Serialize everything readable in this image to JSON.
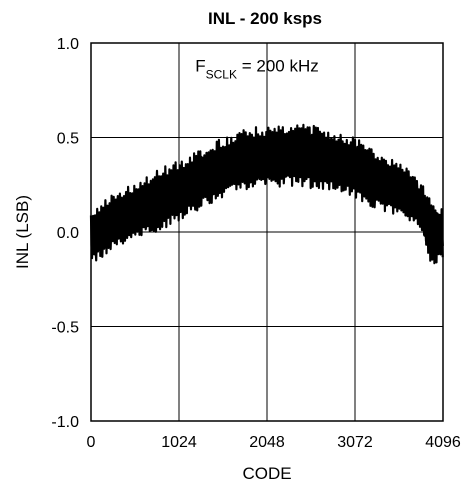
{
  "chart_data": {
    "type": "line",
    "title": "INL - 200 ksps",
    "xlabel": "CODE",
    "ylabel": "INL (LSB)",
    "xlim": [
      0,
      4096
    ],
    "ylim": [
      -1.0,
      1.0
    ],
    "x_ticks": [
      0,
      1024,
      2048,
      3072,
      4096
    ],
    "x_tick_labels": [
      "0",
      "1024",
      "2048",
      "3072",
      "4096"
    ],
    "y_ticks": [
      1.0,
      0.5,
      0.0,
      -0.5,
      -1.0
    ],
    "y_tick_labels": [
      "1.0",
      "0.5",
      "0.0",
      "-0.5",
      "-1.0"
    ],
    "grid": true,
    "annotation": {
      "main": "F",
      "subscript": "SCLK",
      "rest": " = 200 kHz"
    },
    "envelope": {
      "x": [
        0,
        128,
        256,
        512,
        768,
        1024,
        1280,
        1536,
        1792,
        2048,
        2304,
        2560,
        2816,
        3072,
        3328,
        3584,
        3712,
        3840,
        3968,
        4096
      ],
      "upper": [
        0.12,
        0.16,
        0.2,
        0.26,
        0.33,
        0.38,
        0.44,
        0.5,
        0.55,
        0.56,
        0.58,
        0.57,
        0.53,
        0.5,
        0.43,
        0.37,
        0.32,
        0.26,
        0.18,
        0.12
      ],
      "lower": [
        -0.16,
        -0.14,
        -0.08,
        -0.04,
        0.0,
        0.06,
        0.12,
        0.18,
        0.22,
        0.24,
        0.24,
        0.23,
        0.22,
        0.18,
        0.12,
        0.08,
        0.06,
        0.0,
        -0.2,
        -0.14
      ]
    }
  }
}
